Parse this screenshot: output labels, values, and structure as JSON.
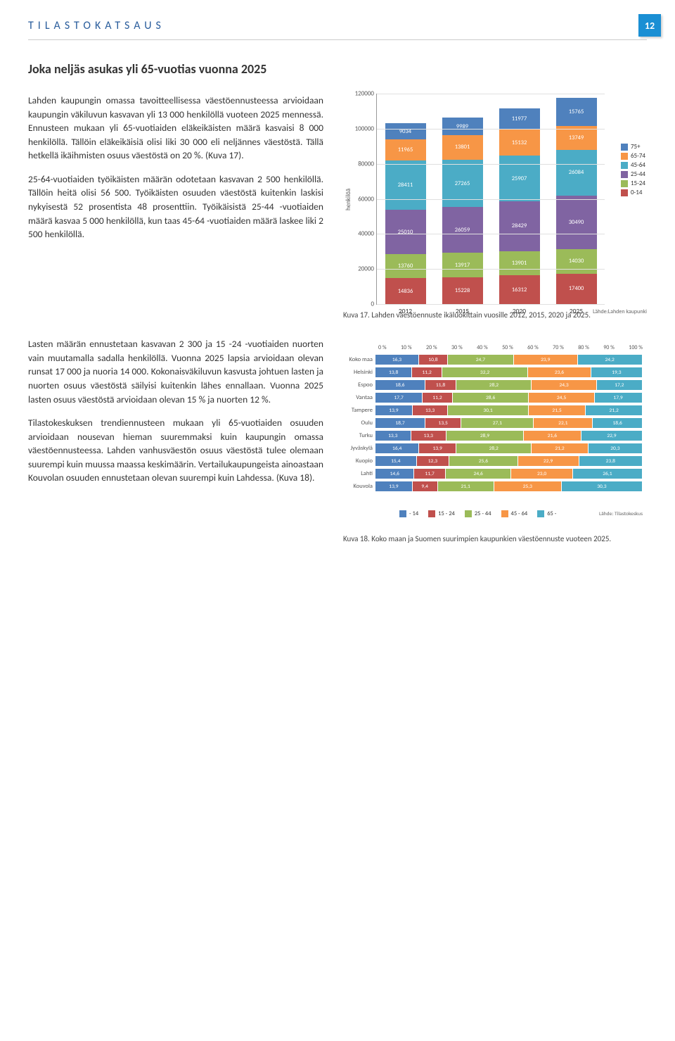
{
  "header": {
    "title": "TILASTOKATSAUS",
    "page_number": "12"
  },
  "main": {
    "title": "Joka neljäs asukas yli 65-vuotias vuonna 2025",
    "paragraphs": [
      "Lahden kaupungin omassa tavoitteellisessa väestöennusteessa arvioidaan kaupungin väkiluvun kasvavan yli 13 000 henkilöllä vuoteen 2025 mennessä. Ennusteen mukaan yli 65-vuotiaiden eläkeikäisten määrä kasvaisi 8 000 henkilöllä. Tällöin eläkeikäisiä olisi liki 30 000 eli neljännes väestöstä. Tällä hetkellä ikäihmisten osuus väestöstä on 20 %. (Kuva 17).",
      "25-64-vuotiaiden työikäisten määrän odotetaan kasvavan 2 500 henkilöllä. Tällöin heitä olisi 56 500. Työikäisten osuuden väestöstä kuitenkin laskisi nykyisestä 52 prosentista 48 prosenttiin. Työikäisistä 25-44 -vuotiaiden määrä kasvaa 5 000 henkilöllä, kun taas 45-64 -vuotiaiden määrä laskee liki 2 500 henkilöllä.",
      "Lasten määrän ennustetaan kasvavan 2 300 ja 15 -24 -vuotiaiden nuorten vain muutamalla sadalla henkilöllä. Vuonna 2025 lapsia arvioidaan olevan runsat 17 000 ja nuoria 14 000. Kokonaisväkiluvun kasvusta johtuen lasten ja nuorten osuus väestöstä säilyisi kuitenkin lähes ennallaan. Vuonna 2025 lasten osuus väestöstä arvioidaan olevan 15 % ja nuorten 12 %.",
      "Tilastokeskuksen trendiennusteen mukaan yli 65-vuotiaiden osuuden arvioidaan nousevan hieman suuremmaksi kuin kaupungin omassa väestöennusteessa. Lahden vanhusväestön osuus väestöstä tulee olemaan suurempi kuin muussa maassa keskimäärin. Vertailukaupungeista ainoastaan Kouvolan osuuden ennustetaan olevan suurempi kuin Lahdessa. (Kuva 18)."
    ]
  },
  "chart1": {
    "type": "stacked-bar",
    "ylabel": "henkilöä",
    "ymax": 120000,
    "ytick_step": 20000,
    "categories": [
      "2012",
      "2015",
      "2020",
      "2025"
    ],
    "source": "Lähde:Lahden kaupunki",
    "series_order": [
      "0-14",
      "15-24",
      "25-44",
      "45-64",
      "65-74",
      "75+"
    ],
    "colors": {
      "0-14": "#c0504d",
      "15-24": "#9bbb59",
      "25-44": "#8064a2",
      "45-64": "#4bacc6",
      "65-74": "#f79646",
      "75+": "#4f81bd"
    },
    "legend_labels": [
      "75+",
      "65-74",
      "45-64",
      "25-44",
      "15-24",
      "0-14"
    ],
    "data": {
      "2012": {
        "0-14": 14836,
        "15-24": 13760,
        "25-44": 25010,
        "45-64": 28411,
        "65-74": 11965,
        "75+": 9034
      },
      "2015": {
        "0-14": 15228,
        "15-24": 13917,
        "25-44": 26059,
        "45-64": 27265,
        "65-74": 13801,
        "75+": 9989
      },
      "2020": {
        "0-14": 16312,
        "15-24": 13901,
        "25-44": 28429,
        "45-64": 25907,
        "65-74": 15132,
        "75+": 11977
      },
      "2025": {
        "0-14": 17400,
        "15-24": 14030,
        "25-44": 30490,
        "45-64": 26084,
        "65-74": 13749,
        "75+": 15765
      }
    },
    "caption": "Kuva 17. Lahden väestöennuste ikäluokittain vuosille 2012, 2015, 2020 ja 2025."
  },
  "chart2": {
    "type": "horizontal-stacked-bar",
    "xticks": [
      "0 %",
      "10 %",
      "20 %",
      "30 %",
      "40 %",
      "50 %",
      "60 %",
      "70 %",
      "80 %",
      "90 %",
      "100 %"
    ],
    "rows": [
      "Koko maa",
      "Helsinki",
      "Espoo",
      "Vantaa",
      "Tampere",
      "Oulu",
      "Turku",
      "Jyväskylä",
      "Kuopio",
      "Lahti",
      "Kouvola"
    ],
    "series_order": [
      "- 14",
      "15 - 24",
      "25 - 44",
      "45 - 64",
      "65 -"
    ],
    "colors": {
      "- 14": "#4f81bd",
      "15 - 24": "#c0504d",
      "25 - 44": "#9bbb59",
      "45 - 64": "#f79646",
      "65 -": "#4bacc6"
    },
    "data": {
      "Koko maa": {
        "- 14": 16.3,
        "15 - 24": 10.8,
        "25 - 44": 24.7,
        "45 - 64": 23.9,
        "65 -": 24.2
      },
      "Helsinki": {
        "- 14": 13.8,
        "15 - 24": 11.2,
        "25 - 44": 32.2,
        "45 - 64": 23.6,
        "65 -": 19.3
      },
      "Espoo": {
        "- 14": 18.6,
        "15 - 24": 11.8,
        "25 - 44": 28.2,
        "45 - 64": 24.3,
        "65 -": 17.2
      },
      "Vantaa": {
        "- 14": 17.7,
        "15 - 24": 11.2,
        "25 - 44": 28.6,
        "45 - 64": 24.5,
        "65 -": 17.9
      },
      "Tampere": {
        "- 14": 13.9,
        "15 - 24": 13.3,
        "25 - 44": 30.1,
        "45 - 64": 21.5,
        "65 -": 21.2
      },
      "Oulu": {
        "- 14": 18.7,
        "15 - 24": 13.5,
        "25 - 44": 27.1,
        "45 - 64": 22.1,
        "65 -": 18.6
      },
      "Turku": {
        "- 14": 13.3,
        "15 - 24": 13.3,
        "25 - 44": 28.9,
        "45 - 64": 21.6,
        "65 -": 22.9
      },
      "Jyväskylä": {
        "- 14": 16.4,
        "15 - 24": 13.9,
        "25 - 44": 28.2,
        "45 - 64": 21.2,
        "65 -": 20.3
      },
      "Kuopio": {
        "- 14": 15.4,
        "15 - 24": 12.3,
        "25 - 44": 25.6,
        "45 - 64": 22.9,
        "65 -": 23.8
      },
      "Lahti": {
        "- 14": 14.6,
        "15 - 24": 11.7,
        "25 - 44": 24.6,
        "45 - 64": 23.0,
        "65 -": 26.1
      },
      "Kouvola": {
        "- 14": 13.9,
        "15 - 24": 9.4,
        "25 - 44": 21.1,
        "45 - 64": 25.3,
        "65 -": 30.3
      }
    },
    "source": "Lähde: Tilastokeskus",
    "caption": "Kuva 18. Koko maan ja Suomen suurimpien kaupunkien väestöennuste vuoteen 2025."
  }
}
